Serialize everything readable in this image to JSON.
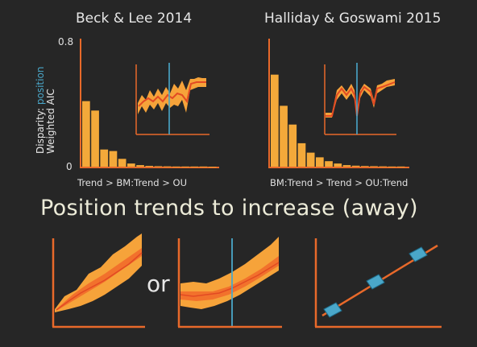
{
  "panels": [
    {
      "title": "Beck & Lee 2014",
      "subtitle": "Trend > BM:Trend > OU",
      "ylabel_prefix": "Disparity: ",
      "ylabel_highlight": "position",
      "ylabel_line2": "Weighted AIC",
      "ytick_top": "0.8",
      "ytick_bottom": "0"
    },
    {
      "title": "Halliday & Goswami 2015",
      "subtitle": "BM:Trend > Trend > OU:Trend"
    }
  ],
  "headline": "Position trends to increase (away)",
  "or_text": "or",
  "colors": {
    "bar": "#f3a93a",
    "axis": "#e8692a",
    "envelope_outer": "#f6a33a",
    "envelope_inner": "#f2712c",
    "line": "#e24a23",
    "marker": "#4aa7c9",
    "background": "#262626"
  },
  "chart_data": [
    {
      "type": "bar",
      "title": "Beck & Lee 2014",
      "xlabel": "Trend > BM:Trend > OU",
      "ylabel": "Weighted AIC",
      "ylim": [
        0,
        0.8
      ],
      "values": [
        0.42,
        0.36,
        0.11,
        0.1,
        0.05,
        0.02,
        0.01,
        0.005,
        0.003,
        0.002,
        0.001,
        0.001,
        0.001,
        0.001,
        0.0
      ]
    },
    {
      "type": "bar",
      "title": "Halliday & Goswami 2015",
      "xlabel": "BM:Trend > Trend > OU:Trend",
      "ylabel": "Weighted AIC",
      "ylim": [
        0,
        0.8
      ],
      "values": [
        0.59,
        0.39,
        0.27,
        0.15,
        0.09,
        0.06,
        0.035,
        0.02,
        0.01,
        0.006,
        0.004,
        0.003,
        0.002,
        0.001,
        0.001
      ]
    }
  ]
}
